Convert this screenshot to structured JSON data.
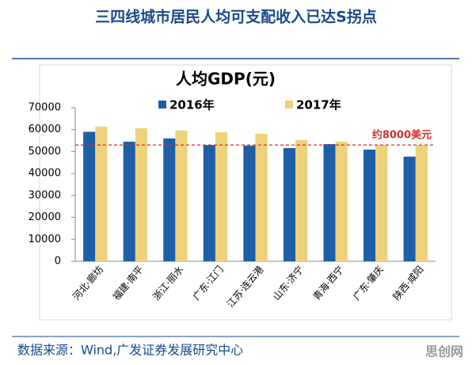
{
  "header": {
    "title": "三四线城市居民人均可支配收入已达S拐点"
  },
  "chart_data": {
    "type": "bar",
    "title": "人均GDP(元)",
    "categories": [
      "河北·廊坊",
      "福建·南平",
      "浙江·丽水",
      "广东·江门",
      "江苏·连云港",
      "山东·济宁",
      "青海·西宁",
      "广东·肇庆",
      "陕西·咸阳"
    ],
    "series": [
      {
        "name": "2016年",
        "color": "#1f5fa6",
        "values": [
          59000,
          54500,
          56000,
          53000,
          52700,
          51600,
          53400,
          50900,
          47700
        ]
      },
      {
        "name": "2017年",
        "color": "#eed27a",
        "values": [
          61400,
          60600,
          59600,
          58800,
          58100,
          55200,
          54500,
          53000,
          53000
        ]
      }
    ],
    "ylim": [
      0,
      70000
    ],
    "yticks": [
      0,
      10000,
      20000,
      30000,
      40000,
      50000,
      60000,
      70000
    ],
    "reference": {
      "value": 53000,
      "label": "约8000美元",
      "color": "#d0312d"
    },
    "legend": "top"
  },
  "footer": {
    "source": "数据来源：Wind,广发证券发展研究中心",
    "watermark": "思创网"
  }
}
